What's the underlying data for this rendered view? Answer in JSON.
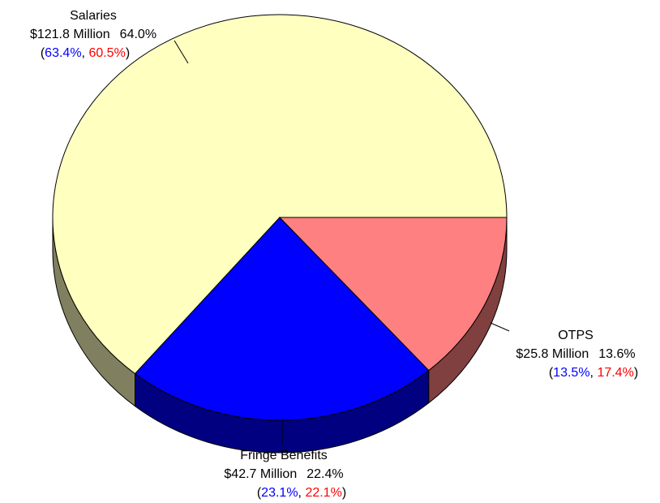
{
  "chart_data": {
    "type": "pie",
    "categories": [
      "Salaries",
      "Fringe Benefits",
      "OTPS"
    ],
    "values": [
      64.0,
      22.4,
      13.6
    ],
    "value_labels": [
      "64.0%",
      "22.4%",
      "13.6%"
    ],
    "amounts": [
      121.8,
      42.7,
      25.8
    ],
    "amount_labels": [
      "$121.8 Million",
      "$42.7 Million",
      "$25.8 Million"
    ],
    "colors": [
      "#ffffc0",
      "#0000ff",
      "#ff8080"
    ],
    "side_colors": [
      "#808060",
      "#000080",
      "#804040"
    ],
    "comparisons": [
      {
        "color": "#0000ff",
        "values": [
          63.4,
          23.1,
          13.5
        ],
        "value_labels": [
          "63.4%",
          "23.1%",
          "13.5%"
        ]
      },
      {
        "color": "#ff0000",
        "values": [
          60.5,
          22.1,
          17.4
        ],
        "value_labels": [
          "60.5%",
          "22.1%",
          "17.4%"
        ]
      }
    ],
    "separators": [
      "(",
      ", ",
      ")"
    ]
  }
}
